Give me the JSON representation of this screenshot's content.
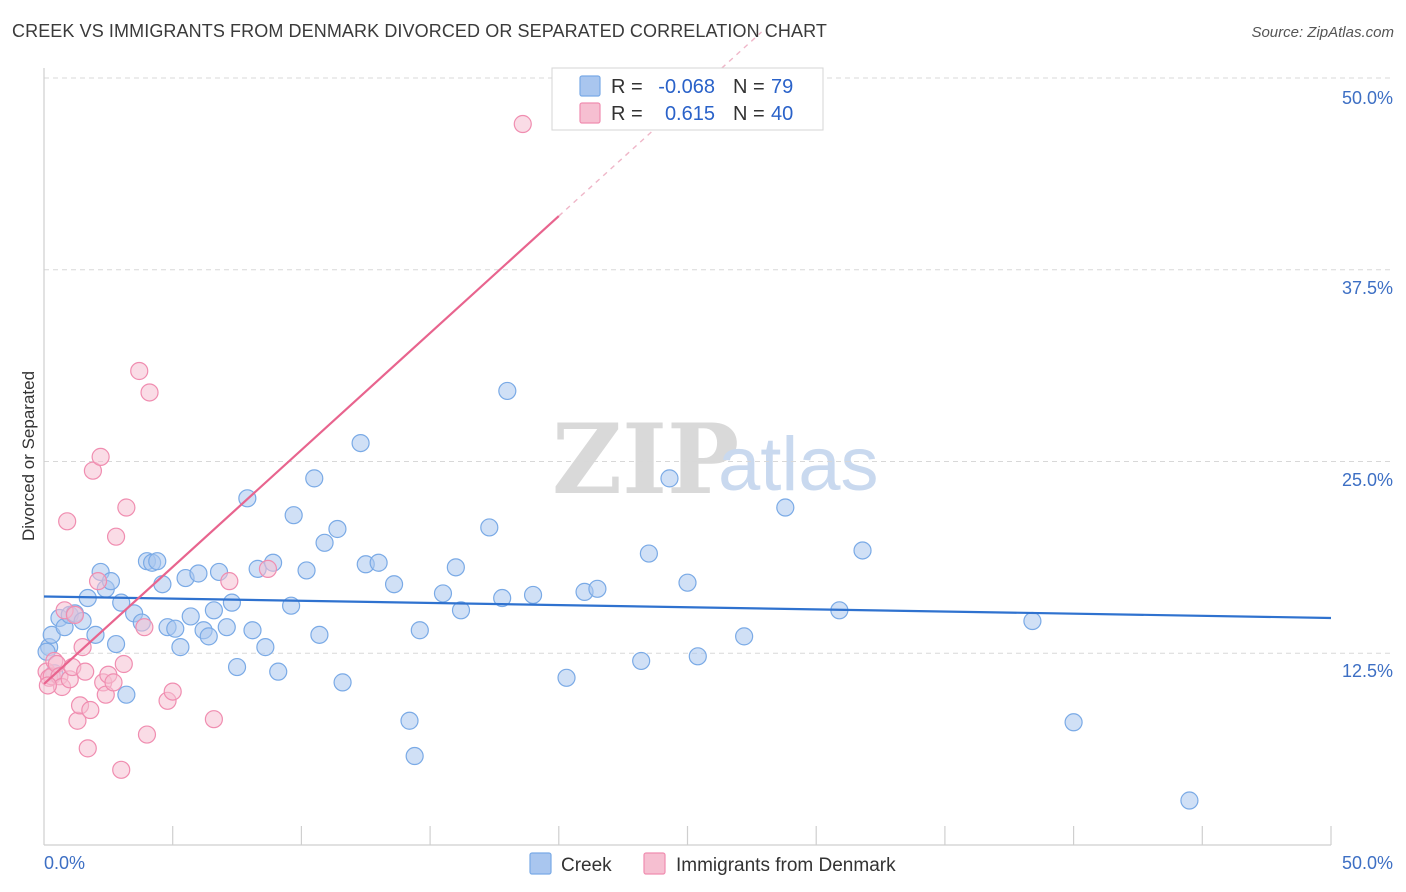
{
  "title": "CREEK VS IMMIGRANTS FROM DENMARK DIVORCED OR SEPARATED CORRELATION CHART",
  "source": "Source: ZipAtlas.com",
  "watermark": {
    "part1": "ZIP",
    "part2": "atlas"
  },
  "legend_top": {
    "r_label": "R =",
    "n_label": "N =",
    "rows": [
      {
        "series": "Creek",
        "r": "-0.068",
        "n": "79",
        "color": "#7aaae6"
      },
      {
        "series": "Immigrants from Denmark",
        "r": "0.615",
        "n": "40",
        "color": "#f08db0"
      }
    ]
  },
  "colors": {
    "creek_fill": "#a9c6ef",
    "creek_stroke": "#7aaae6",
    "creek_line": "#2f72cf",
    "denmark_fill": "#f6bfd1",
    "denmark_stroke": "#f08db0",
    "denmark_line": "#e8648e",
    "tick_label": "#3d6fc4",
    "grid": "#d8d8d8"
  },
  "chart_data": {
    "type": "scatter",
    "title": "CREEK VS IMMIGRANTS FROM DENMARK DIVORCED OR SEPARATED CORRELATION CHART",
    "xlabel": "",
    "ylabel": "Divorced or Separated",
    "xlim": [
      0,
      50
    ],
    "ylim": [
      0,
      50
    ],
    "x_tick_labels": [
      "0.0%",
      "50.0%"
    ],
    "y_ticks": [
      12.5,
      25.0,
      37.5,
      50.0
    ],
    "y_tick_labels": [
      "12.5%",
      "25.0%",
      "37.5%",
      "50.0%"
    ],
    "legend": [
      "Creek",
      "Immigrants from Denmark"
    ],
    "series": [
      {
        "name": "Creek",
        "r": -0.068,
        "n": 79,
        "trend": {
          "x": [
            0,
            50
          ],
          "y": [
            16.2,
            14.8
          ]
        },
        "points": [
          [
            0.2,
            12.9
          ],
          [
            0.3,
            13.7
          ],
          [
            0.4,
            11.2
          ],
          [
            0.6,
            14.8
          ],
          [
            0.8,
            14.2
          ],
          [
            1.0,
            15.0
          ],
          [
            1.2,
            15.1
          ],
          [
            1.5,
            14.6
          ],
          [
            1.7,
            16.1
          ],
          [
            2.0,
            13.7
          ],
          [
            2.2,
            17.8
          ],
          [
            2.4,
            16.7
          ],
          [
            2.6,
            17.2
          ],
          [
            2.8,
            13.1
          ],
          [
            3.0,
            15.8
          ],
          [
            3.2,
            9.8
          ],
          [
            3.5,
            15.1
          ],
          [
            3.8,
            14.5
          ],
          [
            4.0,
            18.5
          ],
          [
            4.2,
            18.4
          ],
          [
            4.4,
            18.5
          ],
          [
            4.6,
            17.0
          ],
          [
            4.8,
            14.2
          ],
          [
            5.1,
            14.1
          ],
          [
            5.3,
            12.9
          ],
          [
            5.5,
            17.4
          ],
          [
            5.7,
            14.9
          ],
          [
            6.0,
            17.7
          ],
          [
            6.2,
            14.0
          ],
          [
            6.4,
            13.6
          ],
          [
            6.6,
            15.3
          ],
          [
            6.8,
            17.8
          ],
          [
            7.1,
            14.2
          ],
          [
            7.3,
            15.8
          ],
          [
            7.5,
            11.6
          ],
          [
            7.9,
            22.6
          ],
          [
            8.1,
            14.0
          ],
          [
            8.3,
            18.0
          ],
          [
            8.6,
            12.9
          ],
          [
            8.9,
            18.4
          ],
          [
            9.1,
            11.3
          ],
          [
            9.6,
            15.6
          ],
          [
            9.7,
            21.5
          ],
          [
            10.2,
            17.9
          ],
          [
            10.5,
            23.9
          ],
          [
            10.7,
            13.7
          ],
          [
            10.9,
            19.7
          ],
          [
            11.4,
            20.6
          ],
          [
            11.6,
            10.6
          ],
          [
            12.3,
            26.2
          ],
          [
            12.5,
            18.3
          ],
          [
            13.0,
            18.4
          ],
          [
            13.6,
            17.0
          ],
          [
            14.2,
            8.1
          ],
          [
            14.4,
            5.8
          ],
          [
            14.6,
            14.0
          ],
          [
            15.5,
            16.4
          ],
          [
            16.0,
            18.1
          ],
          [
            16.2,
            15.3
          ],
          [
            17.3,
            20.7
          ],
          [
            17.8,
            16.1
          ],
          [
            18.0,
            29.6
          ],
          [
            19.0,
            16.3
          ],
          [
            20.3,
            10.9
          ],
          [
            21.0,
            16.5
          ],
          [
            21.5,
            16.7
          ],
          [
            23.2,
            12.0
          ],
          [
            23.5,
            19.0
          ],
          [
            24.3,
            23.9
          ],
          [
            25.0,
            17.1
          ],
          [
            25.4,
            12.3
          ],
          [
            27.2,
            13.6
          ],
          [
            28.8,
            22.0
          ],
          [
            30.9,
            15.3
          ],
          [
            31.8,
            19.2
          ],
          [
            38.4,
            14.6
          ],
          [
            40.0,
            8.0
          ],
          [
            44.5,
            2.9
          ],
          [
            0.1,
            12.6
          ]
        ]
      },
      {
        "name": "Immigrants from Denmark",
        "r": 0.615,
        "n": 40,
        "trend": {
          "x": [
            0,
            20
          ],
          "y": [
            10.5,
            41.0
          ]
        },
        "trend_dashed": {
          "x": [
            20,
            50
          ],
          "y": [
            41.0,
            86.7
          ]
        },
        "points": [
          [
            0.1,
            11.3
          ],
          [
            0.2,
            10.9
          ],
          [
            0.3,
            11.0
          ],
          [
            0.4,
            12.0
          ],
          [
            0.5,
            11.8
          ],
          [
            0.6,
            11.0
          ],
          [
            0.7,
            10.3
          ],
          [
            0.8,
            15.3
          ],
          [
            0.9,
            21.1
          ],
          [
            1.0,
            10.8
          ],
          [
            1.1,
            11.6
          ],
          [
            1.2,
            15.0
          ],
          [
            1.3,
            8.1
          ],
          [
            1.4,
            9.1
          ],
          [
            1.5,
            12.9
          ],
          [
            1.6,
            11.3
          ],
          [
            1.7,
            6.3
          ],
          [
            1.8,
            8.8
          ],
          [
            1.9,
            24.4
          ],
          [
            2.1,
            17.2
          ],
          [
            2.2,
            25.3
          ],
          [
            2.3,
            10.6
          ],
          [
            2.4,
            9.8
          ],
          [
            2.5,
            11.1
          ],
          [
            2.7,
            10.6
          ],
          [
            2.8,
            20.1
          ],
          [
            3.1,
            11.8
          ],
          [
            3.2,
            22.0
          ],
          [
            3.0,
            4.9
          ],
          [
            3.7,
            30.9
          ],
          [
            3.9,
            14.2
          ],
          [
            4.0,
            7.2
          ],
          [
            4.1,
            29.5
          ],
          [
            4.8,
            9.4
          ],
          [
            5.0,
            10.0
          ],
          [
            6.6,
            8.2
          ],
          [
            7.2,
            17.2
          ],
          [
            8.7,
            18.0
          ],
          [
            18.6,
            47.0
          ],
          [
            0.15,
            10.4
          ]
        ]
      }
    ]
  }
}
